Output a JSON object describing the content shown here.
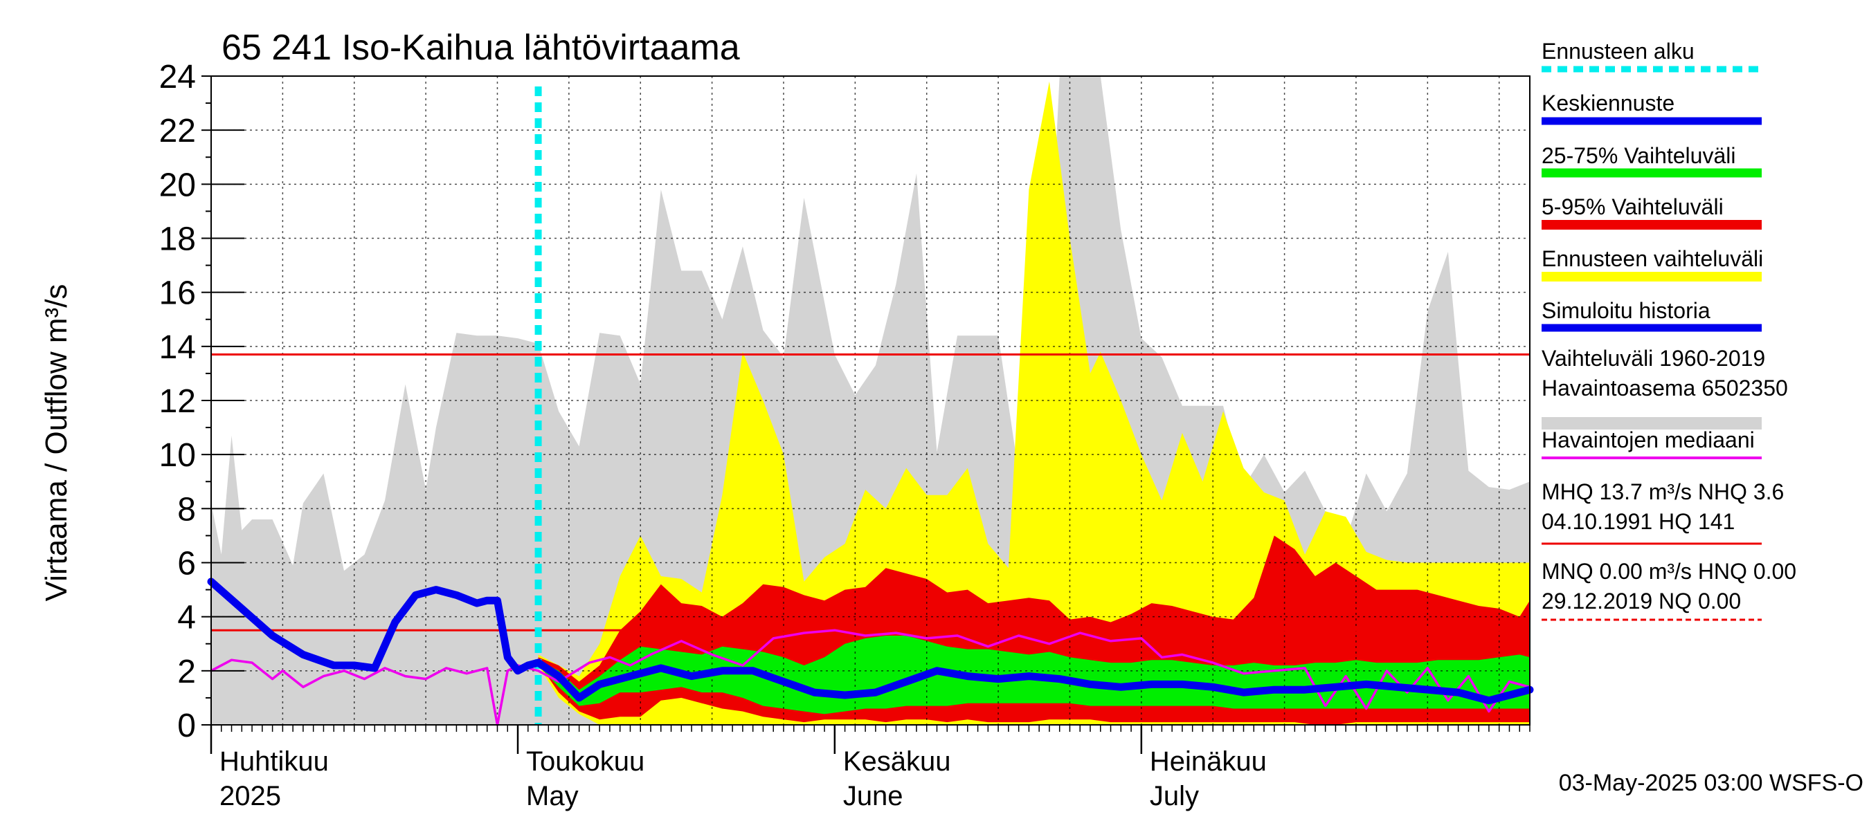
{
  "chart_data": {
    "type": "area",
    "title": "65 241 Iso-Kaihua lähtövirtaama",
    "ylabel": "Virtaama / Outflow    m³/s",
    "ylim": [
      0,
      24
    ],
    "yticks": [
      0,
      2,
      4,
      6,
      8,
      10,
      12,
      14,
      16,
      18,
      20,
      22,
      24
    ],
    "xrange": [
      "2025-04-01",
      "2025-08-08"
    ],
    "forecast_start": "2025-05-03",
    "months": [
      {
        "name_fi": "Huhtikuu",
        "name_en": "2025",
        "date": "2025-04-01"
      },
      {
        "name_fi": "Toukokuu",
        "name_en": "May",
        "date": "2025-05-01"
      },
      {
        "name_fi": "Kesäkuu",
        "name_en": "June",
        "date": "2025-06-01"
      },
      {
        "name_fi": "Heinäkuu",
        "name_en": "July",
        "date": "2025-07-01"
      }
    ],
    "hlines": [
      {
        "name": "MHQ",
        "value": 13.7,
        "color": "#ee0000"
      },
      {
        "name": "MNQ-ref",
        "value": 3.5,
        "color": "#ee0000"
      }
    ],
    "series": [
      {
        "name": "Simuloitu historia",
        "color": "#0000ee",
        "x": [
          "2025-04-01",
          "2025-04-04",
          "2025-04-07",
          "2025-04-10",
          "2025-04-13",
          "2025-04-15",
          "2025-04-17",
          "2025-04-19",
          "2025-04-21",
          "2025-04-23",
          "2025-04-25",
          "2025-04-27",
          "2025-04-28",
          "2025-04-29",
          "2025-04-30",
          "2025-05-01",
          "2025-05-02",
          "2025-05-03"
        ],
        "values": [
          5.3,
          4.3,
          3.3,
          2.6,
          2.2,
          2.2,
          2.1,
          3.8,
          4.8,
          5.0,
          4.8,
          4.5,
          4.6,
          4.6,
          2.5,
          2.0,
          2.2,
          2.3
        ]
      },
      {
        "name": "Keskiennuste",
        "color": "#0000ee",
        "x": [
          "2025-05-03",
          "2025-05-05",
          "2025-05-07",
          "2025-05-09",
          "2025-05-12",
          "2025-05-15",
          "2025-05-18",
          "2025-05-21",
          "2025-05-24",
          "2025-05-27",
          "2025-05-30",
          "2025-06-02",
          "2025-06-05",
          "2025-06-08",
          "2025-06-11",
          "2025-06-14",
          "2025-06-17",
          "2025-06-20",
          "2025-06-23",
          "2025-06-26",
          "2025-06-29",
          "2025-07-02",
          "2025-07-05",
          "2025-07-08",
          "2025-07-11",
          "2025-07-14",
          "2025-07-17",
          "2025-07-20",
          "2025-07-23",
          "2025-07-26",
          "2025-07-29",
          "2025-08-01",
          "2025-08-04",
          "2025-08-08"
        ],
        "values": [
          2.3,
          1.8,
          1.0,
          1.5,
          1.8,
          2.1,
          1.8,
          2.0,
          2.0,
          1.6,
          1.2,
          1.1,
          1.2,
          1.6,
          2.0,
          1.8,
          1.7,
          1.8,
          1.7,
          1.5,
          1.4,
          1.5,
          1.5,
          1.4,
          1.2,
          1.3,
          1.3,
          1.4,
          1.5,
          1.4,
          1.3,
          1.2,
          0.9,
          1.3
        ]
      },
      {
        "name": "Havaintojen mediaani",
        "color": "#ee00ee",
        "x": [
          "2025-04-01",
          "2025-04-03",
          "2025-04-05",
          "2025-04-07",
          "2025-04-08",
          "2025-04-10",
          "2025-04-12",
          "2025-04-14",
          "2025-04-16",
          "2025-04-18",
          "2025-04-20",
          "2025-04-22",
          "2025-04-24",
          "2025-04-26",
          "2025-04-28",
          "2025-04-29",
          "2025-04-30",
          "2025-05-01",
          "2025-05-03",
          "2025-05-05",
          "2025-05-08",
          "2025-05-10",
          "2025-05-12",
          "2025-05-14",
          "2025-05-17",
          "2025-05-20",
          "2025-05-23",
          "2025-05-26",
          "2025-05-29",
          "2025-06-01",
          "2025-06-04",
          "2025-06-07",
          "2025-06-10",
          "2025-06-13",
          "2025-06-16",
          "2025-06-19",
          "2025-06-22",
          "2025-06-25",
          "2025-06-28",
          "2025-07-01",
          "2025-07-03",
          "2025-07-05",
          "2025-07-08",
          "2025-07-11",
          "2025-07-14",
          "2025-07-17",
          "2025-07-19",
          "2025-07-21",
          "2025-07-23",
          "2025-07-25",
          "2025-07-27",
          "2025-07-29",
          "2025-07-31",
          "2025-08-02",
          "2025-08-04",
          "2025-08-06",
          "2025-08-08"
        ],
        "values": [
          2.0,
          2.4,
          2.3,
          1.7,
          2.0,
          1.4,
          1.8,
          2.0,
          1.7,
          2.1,
          1.8,
          1.7,
          2.1,
          1.9,
          2.1,
          0.0,
          2.0,
          2.2,
          2.0,
          1.6,
          2.3,
          2.5,
          2.2,
          2.6,
          3.1,
          2.6,
          2.2,
          3.2,
          3.4,
          3.5,
          3.3,
          3.4,
          3.2,
          3.3,
          2.9,
          3.3,
          3.0,
          3.4,
          3.1,
          3.2,
          2.5,
          2.6,
          2.3,
          1.9,
          2.0,
          2.1,
          0.7,
          1.8,
          0.6,
          2.0,
          1.2,
          2.1,
          0.9,
          1.8,
          0.5,
          1.6,
          1.4
        ]
      }
    ],
    "bands": [
      {
        "name": "Vaihteluväli 1960-2019 Havaintoasema 6502350",
        "color": "#d3d3d3",
        "x": [
          "2025-04-01",
          "2025-04-02",
          "2025-04-03",
          "2025-04-04",
          "2025-04-05",
          "2025-04-07",
          "2025-04-09",
          "2025-04-10",
          "2025-04-12",
          "2025-04-14",
          "2025-04-16",
          "2025-04-18",
          "2025-04-20",
          "2025-04-22",
          "2025-04-23",
          "2025-04-25",
          "2025-04-27",
          "2025-04-29",
          "2025-05-01",
          "2025-05-03",
          "2025-05-05",
          "2025-05-07",
          "2025-05-09",
          "2025-05-11",
          "2025-05-13",
          "2025-05-15",
          "2025-05-17",
          "2025-05-19",
          "2025-05-21",
          "2025-05-23",
          "2025-05-25",
          "2025-05-27",
          "2025-05-29",
          "2025-06-01",
          "2025-06-03",
          "2025-06-05",
          "2025-06-07",
          "2025-06-09",
          "2025-06-11",
          "2025-06-13",
          "2025-06-15",
          "2025-06-17",
          "2025-06-19",
          "2025-06-21",
          "2025-06-23",
          "2025-06-25",
          "2025-06-27",
          "2025-06-29",
          "2025-07-01",
          "2025-07-03",
          "2025-07-05",
          "2025-07-07",
          "2025-07-09",
          "2025-07-11",
          "2025-07-13",
          "2025-07-15",
          "2025-07-17",
          "2025-07-19",
          "2025-07-21",
          "2025-07-23",
          "2025-07-25",
          "2025-07-27",
          "2025-07-29",
          "2025-07-31",
          "2025-08-02",
          "2025-08-04",
          "2025-08-06",
          "2025-08-08"
        ],
        "high": [
          8.2,
          6.3,
          10.7,
          7.2,
          7.6,
          7.6,
          5.9,
          8.2,
          9.3,
          5.7,
          6.3,
          8.3,
          12.6,
          8.7,
          11.0,
          14.5,
          14.4,
          14.4,
          14.3,
          14.1,
          11.6,
          10.3,
          14.5,
          14.4,
          12.6,
          19.8,
          16.8,
          16.8,
          15.0,
          17.7,
          14.6,
          13.6,
          19.5,
          13.7,
          12.2,
          13.3,
          16.3,
          20.4,
          10.1,
          14.4,
          14.4,
          14.4,
          9.3,
          8.6,
          24.0,
          24.0,
          24.0,
          18.3,
          14.3,
          13.6,
          11.8,
          11.8,
          11.8,
          8.8,
          10.0,
          8.6,
          9.4,
          7.9,
          6.8,
          9.3,
          7.9,
          9.3,
          15.3,
          17.5,
          9.4,
          8.8,
          8.7,
          9.0
        ],
        "low": [
          0,
          0,
          0,
          0,
          0,
          0,
          0,
          0,
          0,
          0,
          0,
          0,
          0,
          0,
          0,
          0,
          0,
          0,
          0,
          0,
          0,
          0,
          0,
          0,
          0,
          0,
          0,
          0,
          0,
          0,
          0,
          0,
          0,
          0,
          0,
          0,
          0,
          0,
          0,
          0,
          0,
          0,
          0,
          0,
          0,
          0,
          0,
          0,
          0,
          0,
          0,
          0,
          0,
          0,
          0,
          0,
          0,
          0,
          0,
          0,
          0,
          0,
          0,
          0,
          0,
          0,
          0,
          0
        ]
      },
      {
        "name": "Ennusteen vaihteluväli",
        "color": "#ffff00",
        "x": [
          "2025-05-03",
          "2025-05-05",
          "2025-05-07",
          "2025-05-09",
          "2025-05-11",
          "2025-05-13",
          "2025-05-15",
          "2025-05-17",
          "2025-05-19",
          "2025-05-21",
          "2025-05-23",
          "2025-05-25",
          "2025-05-27",
          "2025-05-29",
          "2025-05-31",
          "2025-06-02",
          "2025-06-04",
          "2025-06-06",
          "2025-06-08",
          "2025-06-10",
          "2025-06-12",
          "2025-06-14",
          "2025-06-16",
          "2025-06-18",
          "2025-06-20",
          "2025-06-22",
          "2025-06-24",
          "2025-06-26",
          "2025-06-27",
          "2025-06-29",
          "2025-07-01",
          "2025-07-03",
          "2025-07-05",
          "2025-07-07",
          "2025-07-09",
          "2025-07-11",
          "2025-07-13",
          "2025-07-15",
          "2025-07-17",
          "2025-07-19",
          "2025-07-21",
          "2025-07-23",
          "2025-07-25",
          "2025-07-27",
          "2025-07-29",
          "2025-07-31",
          "2025-08-02",
          "2025-08-04",
          "2025-08-06",
          "2025-08-08"
        ],
        "high": [
          2.6,
          2.2,
          1.8,
          3.0,
          5.5,
          7.0,
          5.5,
          5.4,
          4.9,
          8.5,
          13.8,
          12.0,
          10.0,
          5.3,
          6.2,
          6.7,
          8.7,
          8.0,
          9.5,
          8.5,
          8.5,
          9.5,
          6.7,
          5.8,
          19.8,
          23.8,
          18.0,
          13.0,
          13.8,
          12.0,
          10.0,
          8.3,
          10.8,
          9.0,
          11.6,
          9.5,
          8.6,
          8.3,
          6.3,
          7.9,
          7.7,
          6.4,
          6.1,
          6.0,
          6.0,
          6.0,
          6.0,
          6.0,
          6.0,
          6.0
        ],
        "low": [
          2.2,
          1.0,
          0.4,
          0.0,
          0.0,
          0.0,
          0.0,
          0.0,
          0.0,
          0.0,
          0.0,
          0.0,
          0.0,
          0.0,
          0.0,
          0.0,
          0.0,
          0.0,
          0.0,
          0.0,
          0.0,
          0.0,
          0.0,
          0.0,
          0.0,
          0.0,
          0.0,
          0.0,
          0.0,
          0.0,
          0.0,
          0.0,
          0.0,
          0.0,
          0.0,
          0.0,
          0.0,
          0.0,
          0.0,
          0.0,
          0.0,
          0.0,
          0.0,
          0.0,
          0.0,
          0.0,
          0.0,
          0.0,
          0.0,
          0.0
        ]
      },
      {
        "name": "5-95% Vaihteluväli",
        "color": "#ee0000",
        "x": [
          "2025-05-03",
          "2025-05-05",
          "2025-05-07",
          "2025-05-09",
          "2025-05-11",
          "2025-05-13",
          "2025-05-15",
          "2025-05-17",
          "2025-05-19",
          "2025-05-21",
          "2025-05-23",
          "2025-05-25",
          "2025-05-27",
          "2025-05-29",
          "2025-05-31",
          "2025-06-02",
          "2025-06-04",
          "2025-06-06",
          "2025-06-08",
          "2025-06-10",
          "2025-06-12",
          "2025-06-14",
          "2025-06-16",
          "2025-06-18",
          "2025-06-20",
          "2025-06-22",
          "2025-06-24",
          "2025-06-26",
          "2025-06-28",
          "2025-06-30",
          "2025-07-02",
          "2025-07-04",
          "2025-07-06",
          "2025-07-08",
          "2025-07-10",
          "2025-07-12",
          "2025-07-14",
          "2025-07-16",
          "2025-07-18",
          "2025-07-20",
          "2025-07-22",
          "2025-07-24",
          "2025-07-26",
          "2025-07-28",
          "2025-07-30",
          "2025-08-01",
          "2025-08-03",
          "2025-08-05",
          "2025-08-07",
          "2025-08-08"
        ],
        "high": [
          2.5,
          2.2,
          1.6,
          2.2,
          3.5,
          4.2,
          5.2,
          4.5,
          4.4,
          4.0,
          4.5,
          5.2,
          5.1,
          4.8,
          4.6,
          5.0,
          5.1,
          5.8,
          5.6,
          5.4,
          4.9,
          5.0,
          4.5,
          4.6,
          4.7,
          4.6,
          3.9,
          4.0,
          3.8,
          4.1,
          4.5,
          4.4,
          4.2,
          4.0,
          3.9,
          4.7,
          7.0,
          6.5,
          5.5,
          6.0,
          5.5,
          5.0,
          5.0,
          5.0,
          4.8,
          4.6,
          4.4,
          4.3,
          4.0,
          4.6
        ],
        "low": [
          2.3,
          1.2,
          0.5,
          0.2,
          0.3,
          0.3,
          0.9,
          1.0,
          0.8,
          0.6,
          0.5,
          0.3,
          0.2,
          0.1,
          0.2,
          0.2,
          0.2,
          0.1,
          0.2,
          0.2,
          0.1,
          0.2,
          0.1,
          0.1,
          0.1,
          0.2,
          0.2,
          0.2,
          0.1,
          0.1,
          0.1,
          0.1,
          0.1,
          0.1,
          0.1,
          0.1,
          0.1,
          0.1,
          0.0,
          0.0,
          0.1,
          0.1,
          0.1,
          0.1,
          0.1,
          0.1,
          0.1,
          0.1,
          0.1,
          0.1
        ]
      },
      {
        "name": "25-75% Vaihteluväli",
        "color": "#00ee00",
        "x": [
          "2025-05-03",
          "2025-05-05",
          "2025-05-07",
          "2025-05-09",
          "2025-05-11",
          "2025-05-13",
          "2025-05-15",
          "2025-05-17",
          "2025-05-19",
          "2025-05-21",
          "2025-05-23",
          "2025-05-25",
          "2025-05-27",
          "2025-05-29",
          "2025-05-31",
          "2025-06-02",
          "2025-06-04",
          "2025-06-06",
          "2025-06-08",
          "2025-06-10",
          "2025-06-12",
          "2025-06-14",
          "2025-06-16",
          "2025-06-18",
          "2025-06-20",
          "2025-06-22",
          "2025-06-24",
          "2025-06-26",
          "2025-06-28",
          "2025-06-30",
          "2025-07-02",
          "2025-07-04",
          "2025-07-06",
          "2025-07-08",
          "2025-07-10",
          "2025-07-12",
          "2025-07-14",
          "2025-07-16",
          "2025-07-18",
          "2025-07-20",
          "2025-07-22",
          "2025-07-24",
          "2025-07-26",
          "2025-07-28",
          "2025-07-30",
          "2025-08-01",
          "2025-08-03",
          "2025-08-05",
          "2025-08-07",
          "2025-08-08"
        ],
        "high": [
          2.4,
          2.0,
          1.3,
          1.8,
          2.4,
          2.9,
          2.8,
          2.7,
          2.6,
          2.9,
          2.8,
          2.7,
          2.5,
          2.2,
          2.5,
          3.0,
          3.2,
          3.3,
          3.3,
          3.1,
          2.9,
          2.8,
          2.8,
          2.7,
          2.6,
          2.7,
          2.5,
          2.4,
          2.3,
          2.3,
          2.4,
          2.4,
          2.3,
          2.2,
          2.2,
          2.3,
          2.2,
          2.2,
          2.3,
          2.3,
          2.4,
          2.3,
          2.3,
          2.3,
          2.4,
          2.4,
          2.4,
          2.5,
          2.6,
          2.5
        ],
        "low": [
          2.2,
          1.4,
          0.7,
          0.8,
          1.2,
          1.2,
          1.3,
          1.4,
          1.2,
          1.2,
          1.0,
          0.7,
          0.6,
          0.5,
          0.4,
          0.5,
          0.6,
          0.6,
          0.7,
          0.7,
          0.7,
          0.8,
          0.8,
          0.8,
          0.8,
          0.8,
          0.8,
          0.7,
          0.7,
          0.7,
          0.7,
          0.7,
          0.7,
          0.7,
          0.6,
          0.6,
          0.6,
          0.6,
          0.6,
          0.6,
          0.6,
          0.6,
          0.6,
          0.6,
          0.6,
          0.6,
          0.6,
          0.6,
          0.6,
          0.6
        ]
      }
    ],
    "legend": [
      {
        "label": "Ennusteen alku",
        "color": "#00eeee",
        "style": "dotted"
      },
      {
        "label": "Keskiennuste",
        "color": "#0000ee",
        "style": "solid"
      },
      {
        "label": "25-75% Vaihteluväli",
        "color": "#00ee00",
        "style": "solid"
      },
      {
        "label": "5-95% Vaihteluväli",
        "color": "#ee0000",
        "style": "solid"
      },
      {
        "label": "Ennusteen vaihteluväli",
        "color": "#ffff00",
        "style": "solid"
      },
      {
        "label": "Simuloitu historia",
        "color": "#0000ee",
        "style": "solid"
      },
      {
        "label": "Vaihteluväli 1960-2019",
        "label2": " Havaintoasema 6502350",
        "color": "#d3d3d3",
        "style": "solid"
      },
      {
        "label": "Havaintojen mediaani",
        "color": "#ee00ee",
        "style": "solid"
      },
      {
        "label": "MHQ 13.7 m³/s NHQ  3.6",
        "label2": "04.10.1991 HQ  141",
        "color": "#ee0000",
        "style": "thin"
      },
      {
        "label": "MNQ 0.00 m³/s HNQ 0.00",
        "label2": "29.12.2019 NQ 0.00",
        "color": "#ee0000",
        "style": "dashed"
      }
    ],
    "footer": "03-May-2025 03:00 WSFS-O"
  }
}
